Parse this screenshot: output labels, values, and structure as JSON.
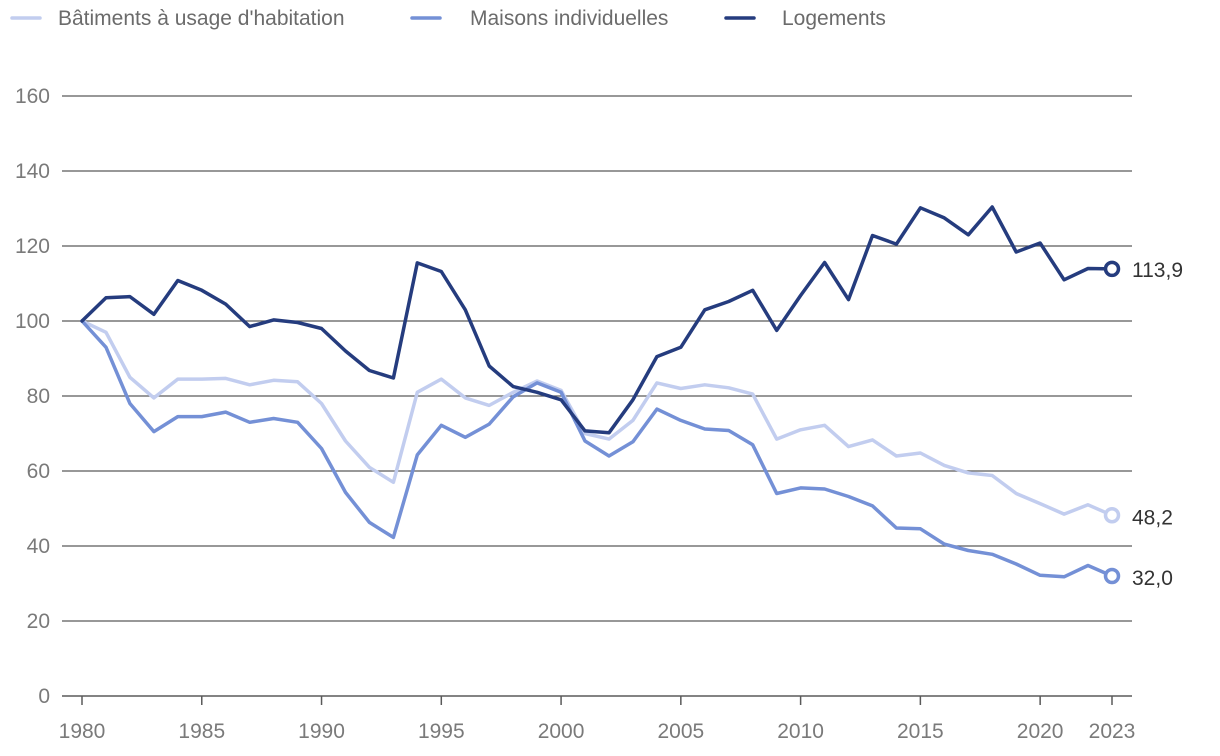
{
  "chart_data": {
    "type": "line",
    "title": "",
    "xlabel": "",
    "ylabel": "",
    "ylim": [
      0,
      160
    ],
    "xlim": [
      1980,
      2023
    ],
    "y_ticks": [
      "0",
      "20",
      "40",
      "60",
      "80",
      "100",
      "120",
      "140",
      "160"
    ],
    "y_tick_values": [
      0,
      20,
      40,
      60,
      80,
      100,
      120,
      140,
      160
    ],
    "x_ticks": [
      "1980",
      "1985",
      "1990",
      "1995",
      "2000",
      "2005",
      "2010",
      "2015",
      "2020",
      "2023"
    ],
    "x_tick_values": [
      1980,
      1985,
      1990,
      1995,
      2000,
      2005,
      2010,
      2015,
      2020,
      2023
    ],
    "grid": true,
    "legend_position": "top-left",
    "x": [
      1980,
      1981,
      1982,
      1983,
      1984,
      1985,
      1986,
      1987,
      1988,
      1989,
      1990,
      1991,
      1992,
      1993,
      1994,
      1995,
      1996,
      1997,
      1998,
      1999,
      2000,
      2001,
      2002,
      2003,
      2004,
      2005,
      2006,
      2007,
      2008,
      2009,
      2010,
      2011,
      2012,
      2013,
      2014,
      2015,
      2016,
      2017,
      2018,
      2019,
      2020,
      2021,
      2022,
      2023
    ],
    "series": [
      {
        "name": "Bâtiments à usage d'habitation",
        "color": "#c2cdef",
        "end_label": "48,2",
        "values": [
          100,
          97,
          85,
          79.5,
          84.5,
          84.5,
          84.7,
          83,
          84.2,
          83.8,
          78,
          68,
          61,
          57,
          81,
          84.5,
          79.5,
          77.5,
          81,
          84,
          81.5,
          70,
          68.5,
          73.5,
          83.5,
          82,
          83,
          82.2,
          80.5,
          68.5,
          71,
          72.2,
          66.5,
          68.3,
          64,
          64.8,
          61.5,
          59.5,
          58.8,
          54,
          51.3,
          48.5,
          51,
          48.2
        ]
      },
      {
        "name": "Maisons individuelles",
        "color": "#7490d6",
        "end_label": "32,0",
        "values": [
          100,
          93,
          78,
          70.5,
          74.5,
          74.5,
          75.7,
          73,
          74,
          73,
          66,
          54.3,
          46.3,
          42.3,
          64.3,
          72.2,
          69,
          72.5,
          79.8,
          83.5,
          81,
          68,
          64,
          67.8,
          76.5,
          73.5,
          71.2,
          70.8,
          67,
          54,
          55.5,
          55.2,
          53.2,
          50.7,
          44.8,
          44.6,
          40.5,
          38.8,
          37.8,
          35.2,
          32.2,
          31.8,
          34.8,
          32
        ]
      },
      {
        "name": "Logements",
        "color": "#253c7e",
        "end_label": "113,9",
        "values": [
          100,
          106.2,
          106.5,
          101.8,
          110.8,
          108.2,
          104.5,
          98.5,
          100.3,
          99.6,
          98,
          92,
          86.8,
          84.8,
          115.5,
          113.2,
          103,
          88,
          82.5,
          81,
          79,
          70.7,
          70.2,
          79,
          90.5,
          93,
          103,
          105.2,
          108.2,
          97.5,
          106.8,
          115.6,
          105.7,
          122.8,
          120.5,
          130.2,
          127.5,
          123,
          130.4,
          118.4,
          120.8,
          111,
          114,
          113.9
        ]
      }
    ]
  }
}
